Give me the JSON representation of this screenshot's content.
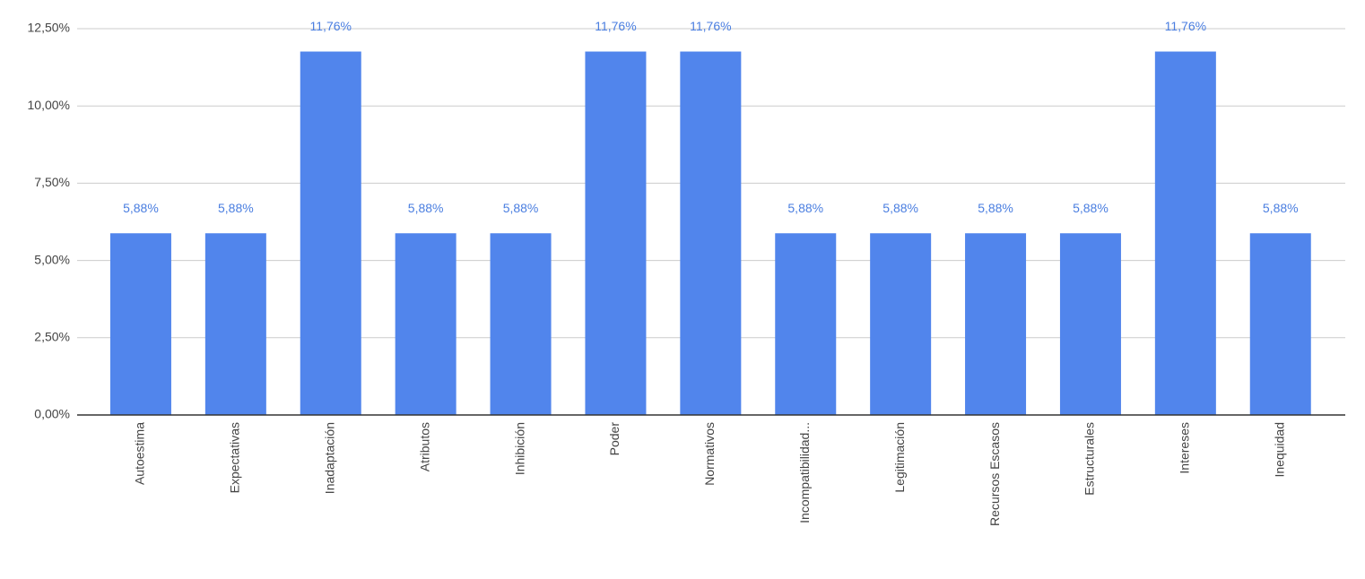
{
  "chart_data": {
    "type": "bar",
    "categories": [
      "Autoestima",
      "Expectativas",
      "Inadaptación",
      "Atributos",
      "Inhibición",
      "Poder",
      "Normativos",
      "Incompatibilidad...",
      "Legitimación",
      "Recursos Escasos",
      "Estructurales",
      "Intereses",
      "Inequidad"
    ],
    "values": [
      5.88,
      5.88,
      11.76,
      5.88,
      5.88,
      11.76,
      11.76,
      5.88,
      5.88,
      5.88,
      5.88,
      11.76,
      5.88
    ],
    "value_labels": [
      "5,88%",
      "5,88%",
      "11,76%",
      "5,88%",
      "5,88%",
      "11,76%",
      "11,76%",
      "5,88%",
      "5,88%",
      "5,88%",
      "5,88%",
      "11,76%",
      "5,88%"
    ],
    "color": "#5185ec",
    "ylim": [
      0,
      12.5
    ],
    "yticks": [
      {
        "value": 0,
        "label": "0,00%"
      },
      {
        "value": 2.5,
        "label": "2,50%"
      },
      {
        "value": 5,
        "label": "5,00%"
      },
      {
        "value": 7.5,
        "label": "7,50%"
      },
      {
        "value": 10,
        "label": "10,00%"
      },
      {
        "value": 12.5,
        "label": "12,50%"
      }
    ],
    "grid": true
  }
}
